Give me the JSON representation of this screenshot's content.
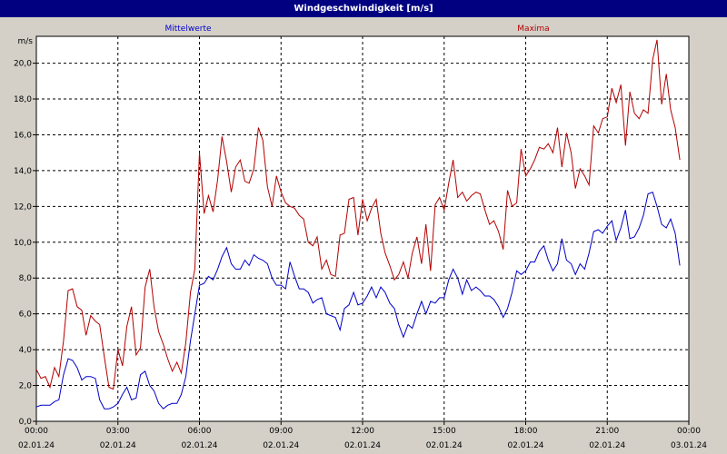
{
  "window": {
    "title": "Windgeschwindigkeit [m/s]"
  },
  "chart_data": {
    "type": "line",
    "title": "Windgeschwindigkeit [m/s]",
    "ylabel": "m/s",
    "xlabel": "",
    "ylim": [
      0,
      21.5
    ],
    "xlim": [
      0,
      24
    ],
    "yticks": [
      "0,0",
      "2,0",
      "4,0",
      "6,0",
      "8,0",
      "10,0",
      "12,0",
      "14,0",
      "16,0",
      "18,0",
      "20,0"
    ],
    "xticks": [
      {
        "time": "00:00",
        "date": "02.01.24"
      },
      {
        "time": "03:00",
        "date": "02.01.24"
      },
      {
        "time": "06:00",
        "date": "02.01.24"
      },
      {
        "time": "09:00",
        "date": "02.01.24"
      },
      {
        "time": "12:00",
        "date": "02.01.24"
      },
      {
        "time": "15:00",
        "date": "02.01.24"
      },
      {
        "time": "18:00",
        "date": "02.01.24"
      },
      {
        "time": "21:00",
        "date": "02.01.24"
      },
      {
        "time": "00:00",
        "date": "03.01.24"
      }
    ],
    "grid": true,
    "legend": "top, above plot",
    "series": [
      {
        "name": "Mittelwerte",
        "color": "#0000c8",
        "values": [
          [
            0.0,
            0.8
          ],
          [
            0.17,
            0.9
          ],
          [
            0.33,
            0.9
          ],
          [
            0.5,
            0.9
          ],
          [
            0.67,
            1.1
          ],
          [
            0.83,
            1.2
          ],
          [
            1.0,
            2.6
          ],
          [
            1.17,
            3.5
          ],
          [
            1.33,
            3.4
          ],
          [
            1.5,
            3.0
          ],
          [
            1.67,
            2.3
          ],
          [
            1.83,
            2.5
          ],
          [
            2.0,
            2.5
          ],
          [
            2.17,
            2.4
          ],
          [
            2.33,
            1.2
          ],
          [
            2.5,
            0.7
          ],
          [
            2.67,
            0.7
          ],
          [
            2.83,
            0.8
          ],
          [
            3.0,
            1.0
          ],
          [
            3.17,
            1.5
          ],
          [
            3.33,
            1.9
          ],
          [
            3.5,
            1.2
          ],
          [
            3.67,
            1.3
          ],
          [
            3.83,
            2.6
          ],
          [
            4.0,
            2.8
          ],
          [
            4.17,
            2.0
          ],
          [
            4.33,
            1.7
          ],
          [
            4.5,
            1.0
          ],
          [
            4.67,
            0.7
          ],
          [
            4.83,
            0.9
          ],
          [
            5.0,
            1.0
          ],
          [
            5.17,
            1.0
          ],
          [
            5.33,
            1.5
          ],
          [
            5.5,
            2.5
          ],
          [
            5.67,
            4.5
          ],
          [
            5.83,
            6.0
          ],
          [
            6.0,
            7.6
          ],
          [
            6.17,
            7.7
          ],
          [
            6.33,
            8.1
          ],
          [
            6.5,
            7.9
          ],
          [
            6.67,
            8.5
          ],
          [
            6.83,
            9.2
          ],
          [
            7.0,
            9.7
          ],
          [
            7.17,
            8.8
          ],
          [
            7.33,
            8.5
          ],
          [
            7.5,
            8.5
          ],
          [
            7.67,
            9.0
          ],
          [
            7.83,
            8.7
          ],
          [
            8.0,
            9.3
          ],
          [
            8.17,
            9.1
          ],
          [
            8.33,
            9.0
          ],
          [
            8.5,
            8.8
          ],
          [
            8.67,
            8.0
          ],
          [
            8.83,
            7.6
          ],
          [
            9.0,
            7.6
          ],
          [
            9.17,
            7.4
          ],
          [
            9.33,
            8.9
          ],
          [
            9.5,
            8.1
          ],
          [
            9.67,
            7.4
          ],
          [
            9.83,
            7.4
          ],
          [
            10.0,
            7.2
          ],
          [
            10.17,
            6.6
          ],
          [
            10.33,
            6.8
          ],
          [
            10.5,
            6.9
          ],
          [
            10.67,
            6.0
          ],
          [
            10.83,
            5.9
          ],
          [
            11.0,
            5.8
          ],
          [
            11.17,
            5.1
          ],
          [
            11.33,
            6.3
          ],
          [
            11.5,
            6.5
          ],
          [
            11.67,
            7.2
          ],
          [
            11.83,
            6.5
          ],
          [
            12.0,
            6.6
          ],
          [
            12.17,
            7.0
          ],
          [
            12.33,
            7.5
          ],
          [
            12.5,
            6.9
          ],
          [
            12.67,
            7.5
          ],
          [
            12.83,
            7.2
          ],
          [
            13.0,
            6.6
          ],
          [
            13.17,
            6.3
          ],
          [
            13.33,
            5.4
          ],
          [
            13.5,
            4.7
          ],
          [
            13.67,
            5.4
          ],
          [
            13.83,
            5.2
          ],
          [
            14.0,
            6.0
          ],
          [
            14.17,
            6.7
          ],
          [
            14.33,
            6.0
          ],
          [
            14.5,
            6.7
          ],
          [
            14.67,
            6.6
          ],
          [
            14.83,
            6.9
          ],
          [
            15.0,
            6.9
          ],
          [
            15.17,
            7.9
          ],
          [
            15.33,
            8.5
          ],
          [
            15.5,
            8.0
          ],
          [
            15.67,
            7.1
          ],
          [
            15.83,
            7.9
          ],
          [
            16.0,
            7.3
          ],
          [
            16.17,
            7.5
          ],
          [
            16.33,
            7.3
          ],
          [
            16.5,
            7.0
          ],
          [
            16.67,
            7.0
          ],
          [
            16.83,
            6.8
          ],
          [
            17.0,
            6.4
          ],
          [
            17.17,
            5.8
          ],
          [
            17.33,
            6.3
          ],
          [
            17.5,
            7.2
          ],
          [
            17.67,
            8.4
          ],
          [
            17.83,
            8.2
          ],
          [
            18.0,
            8.4
          ],
          [
            18.17,
            8.9
          ],
          [
            18.33,
            8.9
          ],
          [
            18.5,
            9.5
          ],
          [
            18.67,
            9.8
          ],
          [
            18.83,
            9.0
          ],
          [
            19.0,
            8.4
          ],
          [
            19.17,
            8.8
          ],
          [
            19.33,
            10.2
          ],
          [
            19.5,
            9.0
          ],
          [
            19.67,
            8.8
          ],
          [
            19.83,
            8.2
          ],
          [
            20.0,
            8.8
          ],
          [
            20.17,
            8.5
          ],
          [
            20.33,
            9.4
          ],
          [
            20.5,
            10.6
          ],
          [
            20.67,
            10.7
          ],
          [
            20.83,
            10.5
          ],
          [
            21.0,
            10.9
          ],
          [
            21.17,
            11.2
          ],
          [
            21.33,
            10.1
          ],
          [
            21.5,
            10.8
          ],
          [
            21.67,
            11.8
          ],
          [
            21.83,
            10.2
          ],
          [
            22.0,
            10.3
          ],
          [
            22.17,
            10.8
          ],
          [
            22.33,
            11.5
          ],
          [
            22.5,
            12.7
          ],
          [
            22.67,
            12.8
          ],
          [
            22.83,
            12.0
          ],
          [
            23.0,
            11.0
          ],
          [
            23.17,
            10.8
          ],
          [
            23.33,
            11.3
          ],
          [
            23.5,
            10.5
          ],
          [
            23.67,
            8.7
          ]
        ]
      },
      {
        "name": "Maxima",
        "color": "#b40000",
        "values": [
          [
            0.0,
            2.9
          ],
          [
            0.17,
            2.4
          ],
          [
            0.33,
            2.5
          ],
          [
            0.5,
            1.9
          ],
          [
            0.67,
            3.0
          ],
          [
            0.83,
            2.5
          ],
          [
            1.0,
            4.5
          ],
          [
            1.17,
            7.3
          ],
          [
            1.33,
            7.4
          ],
          [
            1.5,
            6.4
          ],
          [
            1.67,
            6.2
          ],
          [
            1.83,
            4.8
          ],
          [
            2.0,
            5.9
          ],
          [
            2.17,
            5.6
          ],
          [
            2.33,
            5.4
          ],
          [
            2.5,
            3.6
          ],
          [
            2.67,
            1.9
          ],
          [
            2.83,
            1.8
          ],
          [
            3.0,
            4.0
          ],
          [
            3.17,
            3.1
          ],
          [
            3.33,
            5.3
          ],
          [
            3.5,
            6.4
          ],
          [
            3.67,
            3.7
          ],
          [
            3.83,
            4.1
          ],
          [
            4.0,
            7.5
          ],
          [
            4.17,
            8.5
          ],
          [
            4.33,
            6.4
          ],
          [
            4.5,
            5.0
          ],
          [
            4.67,
            4.3
          ],
          [
            4.83,
            3.5
          ],
          [
            5.0,
            2.8
          ],
          [
            5.17,
            3.3
          ],
          [
            5.33,
            2.7
          ],
          [
            5.5,
            4.4
          ],
          [
            5.67,
            7.2
          ],
          [
            5.83,
            8.5
          ],
          [
            6.0,
            15.0
          ],
          [
            6.17,
            11.6
          ],
          [
            6.33,
            12.6
          ],
          [
            6.5,
            11.7
          ],
          [
            6.67,
            13.5
          ],
          [
            6.83,
            15.9
          ],
          [
            7.0,
            14.5
          ],
          [
            7.17,
            12.8
          ],
          [
            7.33,
            14.2
          ],
          [
            7.5,
            14.6
          ],
          [
            7.67,
            13.4
          ],
          [
            7.83,
            13.3
          ],
          [
            8.0,
            14.1
          ],
          [
            8.17,
            16.4
          ],
          [
            8.33,
            15.7
          ],
          [
            8.5,
            13.1
          ],
          [
            8.67,
            12.0
          ],
          [
            8.83,
            13.7
          ],
          [
            9.0,
            12.8
          ],
          [
            9.17,
            12.2
          ],
          [
            9.33,
            12.0
          ],
          [
            9.5,
            11.9
          ],
          [
            9.67,
            11.5
          ],
          [
            9.83,
            11.3
          ],
          [
            10.0,
            10.0
          ],
          [
            10.17,
            9.8
          ],
          [
            10.33,
            10.3
          ],
          [
            10.5,
            8.5
          ],
          [
            10.67,
            9.0
          ],
          [
            10.83,
            8.2
          ],
          [
            11.0,
            8.1
          ],
          [
            11.17,
            10.4
          ],
          [
            11.33,
            10.5
          ],
          [
            11.5,
            12.4
          ],
          [
            11.67,
            12.5
          ],
          [
            11.83,
            10.4
          ],
          [
            12.0,
            12.4
          ],
          [
            12.17,
            11.2
          ],
          [
            12.33,
            11.9
          ],
          [
            12.5,
            12.4
          ],
          [
            12.67,
            10.5
          ],
          [
            12.83,
            9.4
          ],
          [
            13.0,
            8.7
          ],
          [
            13.17,
            7.9
          ],
          [
            13.33,
            8.2
          ],
          [
            13.5,
            8.9
          ],
          [
            13.67,
            8.0
          ],
          [
            13.83,
            9.4
          ],
          [
            14.0,
            10.3
          ],
          [
            14.17,
            8.8
          ],
          [
            14.33,
            11.0
          ],
          [
            14.5,
            8.4
          ],
          [
            14.67,
            12.1
          ],
          [
            14.83,
            12.5
          ],
          [
            15.0,
            11.8
          ],
          [
            15.17,
            13.3
          ],
          [
            15.33,
            14.6
          ],
          [
            15.5,
            12.5
          ],
          [
            15.67,
            12.8
          ],
          [
            15.83,
            12.3
          ],
          [
            16.0,
            12.6
          ],
          [
            16.17,
            12.8
          ],
          [
            16.33,
            12.7
          ],
          [
            16.5,
            11.8
          ],
          [
            16.67,
            11.0
          ],
          [
            16.83,
            11.2
          ],
          [
            17.0,
            10.6
          ],
          [
            17.17,
            9.6
          ],
          [
            17.33,
            12.9
          ],
          [
            17.5,
            12.0
          ],
          [
            17.67,
            12.2
          ],
          [
            17.83,
            15.2
          ],
          [
            18.0,
            13.7
          ],
          [
            18.17,
            14.1
          ],
          [
            18.33,
            14.6
          ],
          [
            18.5,
            15.3
          ],
          [
            18.67,
            15.2
          ],
          [
            18.83,
            15.5
          ],
          [
            19.0,
            15.0
          ],
          [
            19.17,
            16.4
          ],
          [
            19.33,
            14.2
          ],
          [
            19.5,
            16.1
          ],
          [
            19.67,
            15.0
          ],
          [
            19.83,
            13.0
          ],
          [
            20.0,
            14.1
          ],
          [
            20.17,
            13.7
          ],
          [
            20.33,
            13.2
          ],
          [
            20.5,
            16.5
          ],
          [
            20.67,
            16.1
          ],
          [
            20.83,
            16.9
          ],
          [
            21.0,
            17.0
          ],
          [
            21.17,
            18.6
          ],
          [
            21.33,
            17.8
          ],
          [
            21.5,
            18.8
          ],
          [
            21.67,
            15.4
          ],
          [
            21.83,
            18.4
          ],
          [
            22.0,
            17.2
          ],
          [
            22.17,
            16.9
          ],
          [
            22.33,
            17.4
          ],
          [
            22.5,
            17.2
          ],
          [
            22.67,
            20.2
          ],
          [
            22.83,
            21.3
          ],
          [
            23.0,
            17.7
          ],
          [
            23.17,
            19.4
          ],
          [
            23.33,
            17.4
          ],
          [
            23.5,
            16.4
          ],
          [
            23.67,
            14.6
          ]
        ]
      }
    ]
  }
}
